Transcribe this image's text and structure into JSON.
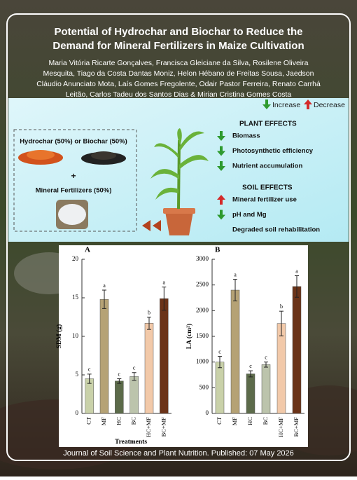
{
  "title_lines": [
    "Potential of Hydrochar and Biochar to Reduce the",
    "Demand for Mineral Fertilizers in Maize Cultivation"
  ],
  "author_lines": [
    "Maria Vitória Ricarte Gonçalves, Francisca Gleiciane da Silva, Rosilene Oliveira",
    "Mesquita, Tiago da Costa Dantas Moniz, Helon Hébano de Freitas Sousa, Jaedson",
    "Cláudio Anunciato Mota, Laís Gomes Fregolente, Odair Pastor Ferreira, Renato Carrhá",
    "Leitão, Carlos Tadeu dos Santos Dias & Mirian Cristina Gomes Costa"
  ],
  "infographic": {
    "legend": {
      "increase": "Increase",
      "decrease": "Decrease"
    },
    "inputs": [
      "Hydrochar (50%) or Biochar (50%)",
      "+",
      "Mineral Fertilizers (50%)"
    ],
    "plant_effects": {
      "heading": "PLANT EFFECTS",
      "items": [
        {
          "text": "Biomass",
          "effect": "increase"
        },
        {
          "text": "Photosynthetic efficiency",
          "effect": "increase"
        },
        {
          "text": "Nutrient accumulation",
          "effect": "increase"
        }
      ]
    },
    "soil_effects": {
      "heading": "SOIL EFFECTS",
      "items": [
        {
          "text": "Mineral fertilizer use",
          "effect": "decrease"
        },
        {
          "text": "pH and Mg",
          "effect": "increase"
        },
        {
          "text": "Degraded soil rehabilitation"
        }
      ]
    }
  },
  "chart_data": [
    {
      "type": "bar",
      "label": "A",
      "ylabel": "SDM (g)",
      "xlabel": "Treatments",
      "categories": [
        "CT",
        "MF",
        "HC",
        "BC",
        "HC+MF",
        "BC+MF"
      ],
      "values": [
        4.5,
        14.8,
        4.2,
        4.8,
        11.7,
        14.9
      ],
      "errors": [
        0.6,
        1.2,
        0.3,
        0.5,
        0.8,
        1.5
      ],
      "letters": [
        "c",
        "a",
        "c",
        "c",
        "b",
        "a"
      ],
      "colors": [
        "#c9d1a9",
        "#b5a275",
        "#5c6b4a",
        "#bcc4ac",
        "#f2c9a9",
        "#6b3318"
      ],
      "ylim": [
        0,
        20
      ],
      "yticks": [
        0,
        5,
        10,
        15,
        20
      ]
    },
    {
      "type": "bar",
      "label": "B",
      "ylabel": "LA (cm²)",
      "categories": [
        "CT",
        "MF",
        "HC",
        "BC",
        "HC+MF",
        "BC+MF"
      ],
      "values": [
        1000,
        2400,
        770,
        950,
        1750,
        2470
      ],
      "errors": [
        110,
        210,
        60,
        50,
        240,
        210
      ],
      "letters": [
        "c",
        "a",
        "c",
        "c",
        "b",
        "a"
      ],
      "colors": [
        "#c9d1a9",
        "#b5a275",
        "#5c6b4a",
        "#bcc4ac",
        "#f2c9a9",
        "#6b3318"
      ],
      "ylim": [
        0,
        3000
      ],
      "yticks": [
        0,
        500,
        1000,
        1500,
        2000,
        2500,
        3000
      ]
    }
  ],
  "footer": "Journal of Soil Science and Plant Nutrition. Published: 07 May 2026"
}
